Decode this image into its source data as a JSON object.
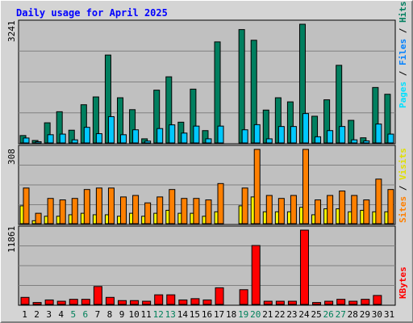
{
  "chart_data": {
    "type": "bar",
    "title": "Daily usage for April 2025",
    "days": [
      "1",
      "2",
      "3",
      "4",
      "5",
      "6",
      "7",
      "8",
      "9",
      "10",
      "11",
      "12",
      "13",
      "14",
      "15",
      "16",
      "17",
      "18",
      "19",
      "20",
      "21",
      "22",
      "23",
      "24",
      "25",
      "26",
      "27",
      "28",
      "29",
      "30",
      "31"
    ],
    "weekend_days": [
      5,
      6,
      12,
      13,
      19,
      20,
      26,
      27
    ],
    "colors": {
      "hits": "#007f5f",
      "files": "#00c8ff",
      "pages": "#00e0ff",
      "visits": "#ffff00",
      "sites": "#ff8000",
      "kbytes": "#ff0000",
      "weekend_label": "#00805a",
      "title": "#0000ff",
      "panel": "#c0c0c0",
      "frame": "#d0d0d0",
      "grid": "#808080"
    },
    "panels": [
      {
        "name": "top",
        "ymax_label": "3241",
        "ymax": 3241,
        "series_labels": [
          "Pages",
          "Files",
          "Hits"
        ],
        "series": [
          {
            "name": "Hits",
            "values": [
              360,
              120,
              980,
              1520,
              620,
              1860,
              2240,
              4280,
              2200,
              1620,
              200,
              2570,
              3220,
              1010,
              2620,
              600,
              4920,
              0,
              5520,
              5000,
              1600,
              2200,
              2000,
              5780,
              1300,
              2100,
              3780,
              1100,
              250,
              2700,
              2370
            ]
          },
          {
            "name": "Files",
            "values": [
              240,
              60,
              400,
              430,
              150,
              760,
              450,
              1280,
              400,
              640,
              90,
              700,
              880,
              480,
              820,
              200,
              820,
              0,
              640,
              890,
              200,
              800,
              800,
              1430,
              300,
              600,
              800,
              150,
              100,
              920,
              430
            ]
          }
        ]
      },
      {
        "name": "middle",
        "ymax_label": "308",
        "ymax": 308,
        "series_labels": [
          "Sites",
          "Visits"
        ],
        "series": [
          {
            "name": "Visits",
            "values": [
              60,
              10,
              25,
              25,
              30,
              35,
              30,
              30,
              25,
              35,
              25,
              35,
              45,
              35,
              35,
              25,
              40,
              0,
              60,
              90,
              40,
              40,
              40,
              55,
              30,
              50,
              50,
              40,
              45,
              40,
              40
            ]
          },
          {
            "name": "Sites",
            "values": [
              120,
              35,
              85,
              80,
              85,
              115,
              120,
              120,
              90,
              95,
              70,
              90,
              115,
              85,
              85,
              80,
              135,
              0,
              120,
              250,
              95,
              85,
              95,
              250,
              80,
              95,
              110,
              95,
              80,
              150,
              115
            ]
          }
        ]
      },
      {
        "name": "bottom",
        "ymax_label": "11861",
        "ymax": 11861,
        "series_labels": [
          "KBytes"
        ],
        "series": [
          {
            "name": "KBytes",
            "values": [
              1100,
              300,
              700,
              500,
              800,
              800,
              2800,
              1100,
              600,
              600,
              500,
              1500,
              1500,
              700,
              900,
              700,
              2600,
              0,
              2300,
              9200,
              500,
              500,
              500,
              11600,
              300,
              500,
              800,
              500,
              800,
              1400,
              0
            ]
          }
        ]
      }
    ]
  }
}
